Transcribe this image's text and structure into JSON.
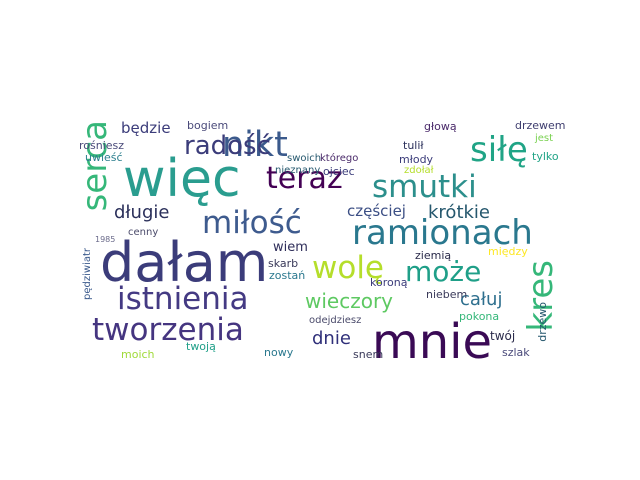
{
  "words": [
    {
      "id": "wiecej",
      "text": "więc",
      "color": "#2a9d8f"
    },
    {
      "id": "dalam",
      "text": "dałam",
      "color": "#3b3c7a"
    },
    {
      "id": "mnie",
      "text": "mnie",
      "color": "#3a0a55"
    },
    {
      "id": "istnienia",
      "text": "istnienia",
      "color": "#443a83"
    },
    {
      "id": "tworzenia",
      "text": "tworzenia",
      "color": "#453580"
    },
    {
      "id": "nikt",
      "text": "nikt",
      "color": "#3b5a8c"
    },
    {
      "id": "radosc",
      "text": "radość",
      "color": "#3b3c7a"
    },
    {
      "id": "sile",
      "text": "siłę",
      "color": "#20a486"
    },
    {
      "id": "serca",
      "text": "serca",
      "color": "#35b779"
    },
    {
      "id": "teraz",
      "text": "teraz",
      "color": "#440154"
    },
    {
      "id": "smutki",
      "text": "smutki",
      "color": "#2c8f8c"
    },
    {
      "id": "milosc",
      "text": "miłość",
      "color": "#3e5b8e"
    },
    {
      "id": "ramionach",
      "text": "ramionach",
      "color": "#2a788e"
    },
    {
      "id": "wole",
      "text": "wolę",
      "color": "#b5de2b"
    },
    {
      "id": "moze",
      "text": "może",
      "color": "#1f9f88"
    },
    {
      "id": "kres",
      "text": "kres",
      "color": "#35b779"
    },
    {
      "id": "dlugie",
      "text": "długie",
      "color": "#2a2f5a"
    },
    {
      "id": "krotkie",
      "text": "krótkie",
      "color": "#26586e"
    },
    {
      "id": "czesciej",
      "text": "częściej",
      "color": "#3b4e84"
    },
    {
      "id": "wieczory",
      "text": "wieczory",
      "color": "#5ec962"
    },
    {
      "id": "caluj",
      "text": "całuj",
      "color": "#2e6f8e"
    },
    {
      "id": "dnie",
      "text": "dnie",
      "color": "#30307a"
    },
    {
      "id": "bedzie",
      "text": "będzie",
      "color": "#3b3c7a"
    },
    {
      "id": "wiem",
      "text": "wiem",
      "color": "#2f2e5a"
    },
    {
      "id": "bogiem",
      "text": "bogiem",
      "color": "#4a4a7a"
    },
    {
      "id": "glowa",
      "text": "głową",
      "color": "#4a2a6a"
    },
    {
      "id": "drzewem",
      "text": "drzewem",
      "color": "#3e3d6e"
    },
    {
      "id": "jest",
      "text": "jest",
      "color": "#7ad151"
    },
    {
      "id": "tylko",
      "text": "tylko",
      "color": "#20a486"
    },
    {
      "id": "rosniesz",
      "text": "rośniesz",
      "color": "#4a4a7a"
    },
    {
      "id": "uwiesc",
      "text": "uwieść",
      "color": "#2c7f8e"
    },
    {
      "id": "swoich",
      "text": "swoich",
      "color": "#26586e"
    },
    {
      "id": "ktorego",
      "text": "którego",
      "color": "#4a2a6a"
    },
    {
      "id": "tulil",
      "text": "tulił",
      "color": "#2a2f5a"
    },
    {
      "id": "mlody",
      "text": "młody",
      "color": "#3b3c7a"
    },
    {
      "id": "zdolal",
      "text": "zdołał",
      "color": "#b5de2b"
    },
    {
      "id": "nieznany",
      "text": "nieznany",
      "color": "#26586e"
    },
    {
      "id": "ojciec",
      "text": "ojciec",
      "color": "#3b3c7a"
    },
    {
      "id": "cenny",
      "text": "cenny",
      "color": "#4a4a6a"
    },
    {
      "id": "y1985",
      "text": "1985",
      "color": "#6a6a8a"
    },
    {
      "id": "skarb",
      "text": "skarb",
      "color": "#3a3a5a"
    },
    {
      "id": "zostan",
      "text": "zostań",
      "color": "#2a788e"
    },
    {
      "id": "ziemia",
      "text": "ziemią",
      "color": "#2a2a4a"
    },
    {
      "id": "miedzy",
      "text": "między",
      "color": "#fde725"
    },
    {
      "id": "niebem",
      "text": "niebem",
      "color": "#3a3a5a"
    },
    {
      "id": "pokona",
      "text": "pokona",
      "color": "#35b779"
    },
    {
      "id": "odejdziesz",
      "text": "odejdziesz",
      "color": "#4a4a6a"
    },
    {
      "id": "koroną",
      "text": "koroną",
      "color": "#3b3c7a"
    },
    {
      "id": "pedziwiatr",
      "text": "pędziwiatr",
      "color": "#3b5a8c"
    },
    {
      "id": "twoj",
      "text": "twój",
      "color": "#2a2a4a"
    },
    {
      "id": "drzewo",
      "text": "drzewo",
      "color": "#26586e"
    },
    {
      "id": "moich",
      "text": "moich",
      "color": "#a0da39"
    },
    {
      "id": "twoja",
      "text": "twoją",
      "color": "#1f9f88"
    },
    {
      "id": "nowy",
      "text": "nowy",
      "color": "#2a788e"
    },
    {
      "id": "snem",
      "text": "snem",
      "color": "#3a3a5a"
    },
    {
      "id": "szlak",
      "text": "szlak",
      "color": "#4a4a7a"
    }
  ]
}
